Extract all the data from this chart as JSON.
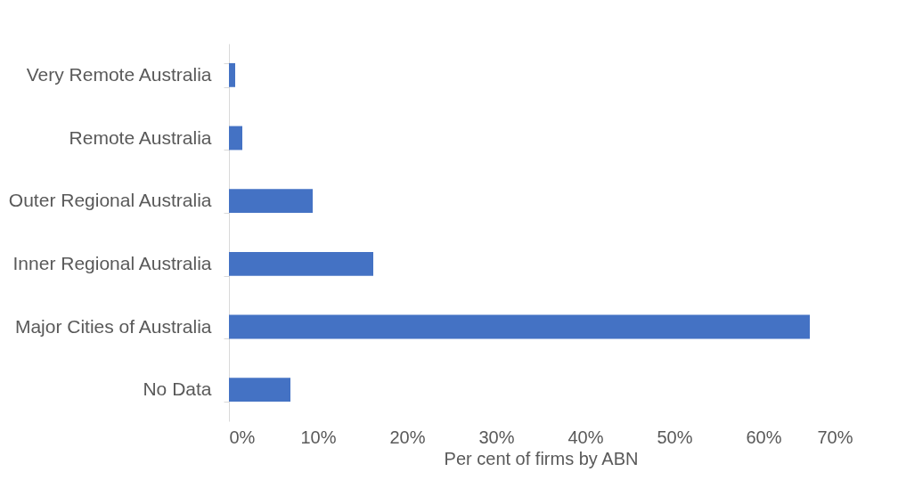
{
  "chart_data": {
    "type": "bar",
    "orientation": "horizontal",
    "xlabel": "Per cent of firms by ABN",
    "categories": [
      "Very Remote Australia",
      "Remote Australia",
      "Outer Regional Australia",
      "Inner Regional Australia",
      "Major Cities of Australia",
      "No Data"
    ],
    "values": [
      0.7,
      1.5,
      9.4,
      16.2,
      65.2,
      6.9
    ],
    "color": "#4472c4",
    "xlim": [
      0,
      70
    ],
    "xticks": [
      {
        "value": 0,
        "label": "0%"
      },
      {
        "value": 10,
        "label": "10%"
      },
      {
        "value": 20,
        "label": "20%"
      },
      {
        "value": 30,
        "label": "30%"
      },
      {
        "value": 40,
        "label": "40%"
      },
      {
        "value": 50,
        "label": "50%"
      },
      {
        "value": 60,
        "label": "60%"
      },
      {
        "value": 70,
        "label": "70%"
      }
    ],
    "grid": false
  }
}
